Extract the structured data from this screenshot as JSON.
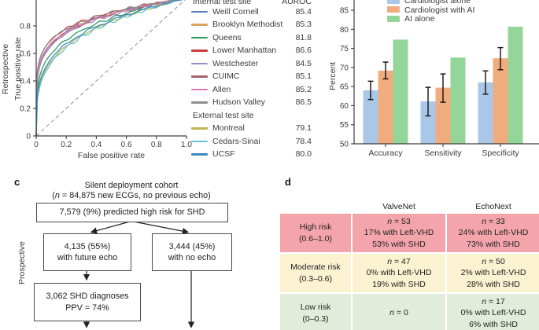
{
  "chart_data": [
    {
      "type": "line",
      "subtype": "roc",
      "panel_side_label": "Retrospective",
      "xlabel": "False positive rate",
      "ylabel": "True positive rate",
      "xlim": [
        0,
        1
      ],
      "ylim": [
        0,
        1
      ],
      "x_ticks": [
        "0",
        "0.2",
        "0.4",
        "0.6",
        "0.8",
        "1.0"
      ],
      "y_ticks": [
        "0",
        "0.2",
        "0.4",
        "0.6",
        "0.8"
      ],
      "diagonal_reference": true,
      "legend_internal_header": "Internal test site",
      "legend_auroc_header": "AUROC",
      "legend_external_header": "External test site",
      "series": [
        {
          "name": "Weill Cornell",
          "auroc": "85.4",
          "color": "#4f7fb5",
          "group": "internal"
        },
        {
          "name": "Brooklyn Methodist",
          "auroc": "85.3",
          "color": "#d8a260",
          "group": "internal"
        },
        {
          "name": "Queens",
          "auroc": "81.8",
          "color": "#2f9c60",
          "group": "internal"
        },
        {
          "name": "Lower Manhattan",
          "auroc": "86.6",
          "color": "#cd3a3a",
          "group": "internal"
        },
        {
          "name": "Westchester",
          "auroc": "84.5",
          "color": "#9e88c4",
          "group": "internal"
        },
        {
          "name": "CUIMC",
          "auroc": "85.1",
          "color": "#a5636f",
          "group": "internal"
        },
        {
          "name": "Allen",
          "auroc": "85.2",
          "color": "#d67cb2",
          "group": "internal"
        },
        {
          "name": "Hudson Valley",
          "auroc": "86.5",
          "color": "#8f8f8f",
          "group": "internal"
        },
        {
          "name": "Montreal",
          "auroc": "79.1",
          "color": "#c0b84a",
          "group": "external"
        },
        {
          "name": "Cedars-Sinai",
          "auroc": "78.4",
          "color": "#64c3d3",
          "group": "external"
        },
        {
          "name": "UCSF",
          "auroc": "80.0",
          "color": "#3d8ac2",
          "group": "external"
        }
      ]
    },
    {
      "type": "bar",
      "ylabel": "Percent",
      "ylim": [
        50,
        87
      ],
      "y_ticks": [
        50,
        55,
        60,
        65,
        70,
        75,
        80,
        85
      ],
      "categories": [
        "Accuracy",
        "Sensitivity",
        "Specificity"
      ],
      "series": [
        {
          "name": "Cardiologist alone",
          "color": "#abc7e8",
          "values": [
            64.0,
            61.1,
            66.1
          ],
          "err_low": [
            61.6,
            57.3,
            63.0
          ],
          "err_high": [
            66.4,
            64.8,
            69.1
          ]
        },
        {
          "name": "Cardiologist with AI",
          "color": "#f1ac7d",
          "values": [
            69.2,
            64.7,
            72.4
          ],
          "err_low": [
            67.0,
            60.9,
            69.4
          ],
          "err_high": [
            71.4,
            68.3,
            75.2
          ]
        },
        {
          "name": "AI alone",
          "color": "#94d69a",
          "values": [
            77.3,
            72.6,
            80.7
          ]
        }
      ],
      "legend_position": "top-left-inside",
      "grid": false
    },
    {
      "type": "table",
      "panel_label": "d",
      "col_headers": [
        "ValveNet",
        "EchoNext"
      ],
      "rows": [
        {
          "label_lines": [
            "High risk",
            "(0.6–1.0)"
          ],
          "color": "#f4a5ab",
          "valvenet_lines": [
            "n = 53",
            "17% with Left-VHD",
            "53% with SHD"
          ],
          "echonext_lines": [
            "n = 33",
            "24% with Left-VHD",
            "73% with SHD"
          ]
        },
        {
          "label_lines": [
            "Moderate risk",
            "(0.3–0.6)"
          ],
          "color": "#fbf2d2",
          "valvenet_lines": [
            "n = 47",
            "0% with Left-VHD",
            "19% with SHD"
          ],
          "echonext_lines": [
            "n = 50",
            "2% with Left-VHD",
            "28% with SHD"
          ]
        },
        {
          "label_lines": [
            "Low risk",
            "(0–0.3)"
          ],
          "color": "#e1edda",
          "valvenet_lines": [
            "n = 0"
          ],
          "echonext_lines": [
            "n = 17",
            "0% with Left-VHD",
            "6% with SHD"
          ]
        }
      ]
    }
  ],
  "flowchart": {
    "panel_label": "c",
    "side_label": "Prospective",
    "title_line1": "Silent deployment cohort",
    "title_line2": "(n = 84,875 new ECGs, no previous echo)",
    "box_top": "7,579 (9%) predicted high risk for SHD",
    "box_left_line1": "4,135 (55%)",
    "box_left_line2": "with future echo",
    "box_right_line1": "3,444 (45%)",
    "box_right_line2": "with no echo",
    "box_bottom_line1": "3,062 SHD diagnoses",
    "box_bottom_line2": "PPV = 74%"
  }
}
